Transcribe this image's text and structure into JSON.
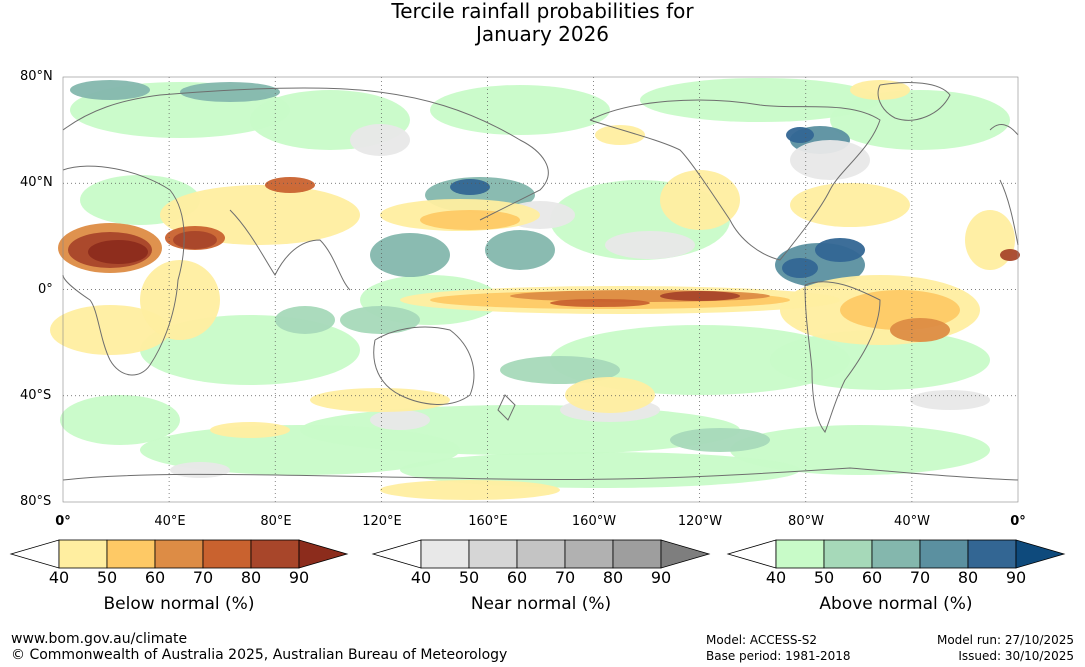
{
  "title": {
    "line1": "Tercile rainfall probabilities for",
    "line2": "January 2026"
  },
  "map": {
    "lat_labels": [
      "80°N",
      "40°N",
      "0°",
      "40°S",
      "80°S"
    ],
    "lon_labels": [
      "0°",
      "40°E",
      "80°E",
      "120°E",
      "160°E",
      "160°W",
      "120°W",
      "80°W",
      "40°W",
      "0°"
    ]
  },
  "colorbars": {
    "below": {
      "title": "Below normal (%)",
      "ticks": [
        "40",
        "50",
        "60",
        "70",
        "80",
        "90"
      ],
      "colors": [
        "#ffffff",
        "#ffeea0",
        "#fec965",
        "#dd8c45",
        "#c9622f",
        "#a8462a",
        "#8c2c1c"
      ]
    },
    "near": {
      "title": "Near normal (%)",
      "ticks": [
        "40",
        "50",
        "60",
        "70",
        "80",
        "90"
      ],
      "colors": [
        "#ffffff",
        "#e8e8e8",
        "#d6d6d6",
        "#c4c4c4",
        "#b1b1b1",
        "#9e9e9e",
        "#7e7e7e"
      ]
    },
    "above": {
      "title": "Above normal (%)",
      "ticks": [
        "40",
        "50",
        "60",
        "70",
        "80",
        "90"
      ],
      "colors": [
        "#ffffff",
        "#c8fbc8",
        "#a6d9b9",
        "#84b7ad",
        "#5b90a0",
        "#336693",
        "#0e4a7c"
      ]
    }
  },
  "footer": {
    "url": "www.bom.gov.au/climate",
    "copyright": "© Commonwealth of Australia 2025, Australian Bureau of Meteorology",
    "model": "Model: ACCESS-S2",
    "base_period": "Base period: 1981-2018",
    "model_run": "Model run: 27/10/2025",
    "issued": "Issued: 30/10/2025"
  }
}
